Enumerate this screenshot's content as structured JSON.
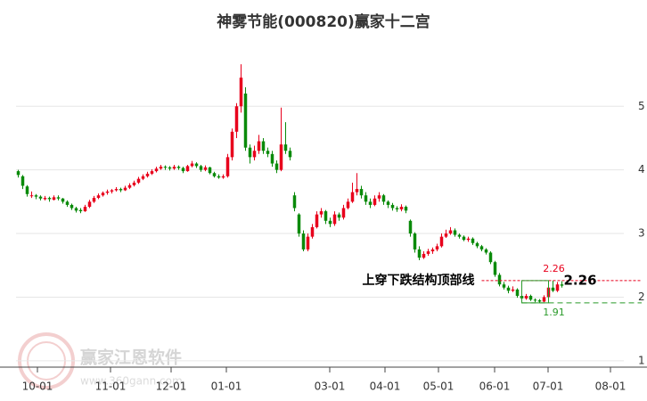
{
  "chart_data": {
    "type": "candlestick",
    "title": "神雾节能(000820)赢家十二宫",
    "candle_order": [
      "open",
      "high",
      "low",
      "close"
    ],
    "up_color": "#e8001c",
    "down_color": "#0a8a0a",
    "xlim": [
      -0.5,
      135.9
    ],
    "xticks": [
      {
        "value": 4.3,
        "label": "10-01"
      },
      {
        "value": 20.7,
        "label": "11-01"
      },
      {
        "value": 34.3,
        "label": "12-01"
      },
      {
        "value": 46.7,
        "label": "01-01"
      },
      {
        "value": 69.9,
        "label": "03-01"
      },
      {
        "value": 82.3,
        "label": "04-01"
      },
      {
        "value": 94.3,
        "label": "05-01"
      },
      {
        "value": 106.9,
        "label": "06-01"
      },
      {
        "value": 118.9,
        "label": "07-01"
      },
      {
        "value": 132.9,
        "label": "08-01"
      }
    ],
    "ylim": [
      0.9,
      5.9
    ],
    "yticks": [
      1,
      2,
      3,
      4,
      5
    ],
    "grid": true,
    "candles": [
      [
        3.98,
        4.0,
        3.88,
        3.92
      ],
      [
        3.9,
        3.92,
        3.7,
        3.75
      ],
      [
        3.74,
        3.76,
        3.58,
        3.62
      ],
      [
        3.6,
        3.66,
        3.56,
        3.6
      ],
      [
        3.6,
        3.62,
        3.54,
        3.58
      ],
      [
        3.58,
        3.6,
        3.52,
        3.55
      ],
      [
        3.54,
        3.59,
        3.52,
        3.56
      ],
      [
        3.56,
        3.58,
        3.5,
        3.54
      ],
      [
        3.53,
        3.6,
        3.52,
        3.57
      ],
      [
        3.57,
        3.6,
        3.52,
        3.55
      ],
      [
        3.55,
        3.56,
        3.47,
        3.5
      ],
      [
        3.5,
        3.52,
        3.42,
        3.45
      ],
      [
        3.45,
        3.47,
        3.37,
        3.4
      ],
      [
        3.4,
        3.42,
        3.33,
        3.36
      ],
      [
        3.37,
        3.4,
        3.32,
        3.35
      ],
      [
        3.35,
        3.45,
        3.34,
        3.42
      ],
      [
        3.42,
        3.53,
        3.4,
        3.5
      ],
      [
        3.5,
        3.59,
        3.48,
        3.56
      ],
      [
        3.56,
        3.63,
        3.54,
        3.6
      ],
      [
        3.6,
        3.66,
        3.58,
        3.64
      ],
      [
        3.64,
        3.69,
        3.61,
        3.66
      ],
      [
        3.66,
        3.7,
        3.63,
        3.68
      ],
      [
        3.68,
        3.73,
        3.66,
        3.7
      ],
      [
        3.7,
        3.72,
        3.65,
        3.68
      ],
      [
        3.68,
        3.75,
        3.67,
        3.72
      ],
      [
        3.72,
        3.79,
        3.7,
        3.76
      ],
      [
        3.76,
        3.83,
        3.74,
        3.8
      ],
      [
        3.8,
        3.89,
        3.78,
        3.86
      ],
      [
        3.86,
        3.93,
        3.84,
        3.9
      ],
      [
        3.9,
        3.97,
        3.88,
        3.94
      ],
      [
        3.94,
        4.01,
        3.92,
        3.98
      ],
      [
        3.98,
        4.05,
        3.96,
        4.02
      ],
      [
        4.02,
        4.08,
        4.0,
        4.05
      ],
      [
        4.05,
        4.07,
        4.0,
        4.04
      ],
      [
        4.04,
        4.06,
        3.99,
        4.02
      ],
      [
        4.02,
        4.08,
        4.0,
        4.05
      ],
      [
        4.05,
        4.07,
        4.0,
        4.03
      ],
      [
        4.03,
        4.05,
        3.95,
        3.98
      ],
      [
        3.98,
        4.08,
        3.97,
        4.06
      ],
      [
        4.06,
        4.14,
        4.04,
        4.1
      ],
      [
        4.1,
        4.12,
        4.03,
        4.06
      ],
      [
        4.06,
        4.08,
        3.97,
        4.0
      ],
      [
        4.0,
        4.07,
        3.98,
        4.04
      ],
      [
        4.04,
        4.05,
        3.93,
        3.95
      ],
      [
        3.95,
        3.97,
        3.88,
        3.9
      ],
      [
        3.9,
        3.93,
        3.86,
        3.88
      ],
      [
        3.88,
        3.93,
        3.86,
        3.9
      ],
      [
        3.9,
        4.25,
        3.88,
        4.2
      ],
      [
        4.2,
        4.65,
        4.15,
        4.6
      ],
      [
        4.6,
        5.05,
        4.5,
        5.0
      ],
      [
        5.0,
        5.66,
        4.9,
        5.45
      ],
      [
        5.2,
        5.3,
        4.3,
        4.35
      ],
      [
        4.35,
        4.4,
        4.1,
        4.2
      ],
      [
        4.2,
        4.38,
        4.15,
        4.3
      ],
      [
        4.3,
        4.55,
        4.25,
        4.45
      ],
      [
        4.45,
        4.5,
        4.25,
        4.3
      ],
      [
        4.3,
        4.35,
        4.2,
        4.25
      ],
      [
        4.25,
        4.3,
        4.05,
        4.1
      ],
      [
        4.1,
        4.15,
        3.95,
        4.0
      ],
      [
        4.0,
        4.98,
        3.98,
        4.4
      ],
      [
        4.4,
        4.75,
        4.25,
        4.3
      ],
      [
        4.3,
        4.35,
        4.15,
        4.2
      ],
      [
        3.6,
        3.65,
        3.35,
        3.4
      ],
      [
        3.3,
        3.32,
        2.95,
        3.0
      ],
      [
        3.0,
        3.05,
        2.72,
        2.75
      ],
      [
        2.75,
        3.0,
        2.72,
        2.95
      ],
      [
        2.95,
        3.15,
        2.92,
        3.1
      ],
      [
        3.1,
        3.35,
        3.08,
        3.3
      ],
      [
        3.3,
        3.4,
        3.25,
        3.35
      ],
      [
        3.35,
        3.37,
        3.15,
        3.2
      ],
      [
        3.2,
        3.25,
        3.1,
        3.15
      ],
      [
        3.15,
        3.35,
        3.12,
        3.3
      ],
      [
        3.3,
        3.33,
        3.2,
        3.25
      ],
      [
        3.25,
        3.45,
        3.22,
        3.4
      ],
      [
        3.4,
        3.55,
        3.38,
        3.5
      ],
      [
        3.5,
        3.8,
        3.48,
        3.65
      ],
      [
        3.65,
        3.95,
        3.6,
        3.7
      ],
      [
        3.7,
        3.75,
        3.55,
        3.6
      ],
      [
        3.6,
        3.65,
        3.45,
        3.5
      ],
      [
        3.5,
        3.55,
        3.4,
        3.45
      ],
      [
        3.45,
        3.6,
        3.43,
        3.55
      ],
      [
        3.55,
        3.65,
        3.5,
        3.6
      ],
      [
        3.6,
        3.62,
        3.45,
        3.5
      ],
      [
        3.5,
        3.52,
        3.4,
        3.45
      ],
      [
        3.45,
        3.48,
        3.36,
        3.4
      ],
      [
        3.4,
        3.43,
        3.34,
        3.38
      ],
      [
        3.38,
        3.46,
        3.35,
        3.42
      ],
      [
        3.42,
        3.44,
        3.32,
        3.36
      ],
      [
        3.2,
        3.22,
        2.95,
        3.0
      ],
      [
        3.0,
        3.02,
        2.7,
        2.75
      ],
      [
        2.75,
        2.8,
        2.58,
        2.62
      ],
      [
        2.62,
        2.72,
        2.6,
        2.68
      ],
      [
        2.68,
        2.76,
        2.65,
        2.72
      ],
      [
        2.72,
        2.78,
        2.68,
        2.75
      ],
      [
        2.75,
        2.84,
        2.72,
        2.8
      ],
      [
        2.8,
        3.0,
        2.78,
        2.95
      ],
      [
        2.95,
        3.06,
        2.93,
        3.0
      ],
      [
        3.0,
        3.1,
        2.98,
        3.05
      ],
      [
        3.05,
        3.08,
        2.95,
        2.98
      ],
      [
        2.98,
        3.0,
        2.92,
        2.95
      ],
      [
        2.95,
        2.97,
        2.88,
        2.9
      ],
      [
        2.9,
        2.95,
        2.87,
        2.92
      ],
      [
        2.92,
        2.94,
        2.82,
        2.85
      ],
      [
        2.85,
        2.87,
        2.77,
        2.8
      ],
      [
        2.8,
        2.82,
        2.72,
        2.75
      ],
      [
        2.75,
        2.77,
        2.67,
        2.7
      ],
      [
        2.7,
        2.72,
        2.52,
        2.55
      ],
      [
        2.55,
        2.57,
        2.32,
        2.35
      ],
      [
        2.35,
        2.38,
        2.17,
        2.2
      ],
      [
        2.2,
        2.24,
        2.12,
        2.15
      ],
      [
        2.15,
        2.18,
        2.06,
        2.1
      ],
      [
        2.1,
        2.17,
        2.08,
        2.12
      ],
      [
        2.12,
        2.14,
        1.99,
        2.02
      ],
      [
        2.02,
        2.04,
        1.95,
        1.98
      ],
      [
        1.98,
        2.05,
        1.96,
        2.02
      ],
      [
        2.02,
        2.04,
        1.94,
        1.96
      ],
      [
        1.96,
        1.98,
        1.92,
        1.95
      ],
      [
        1.95,
        1.97,
        1.91,
        1.93
      ],
      [
        1.93,
        2.03,
        1.92,
        2.0
      ],
      [
        2.0,
        2.2,
        1.98,
        2.15
      ],
      [
        2.15,
        2.26,
        2.08,
        2.1
      ],
      [
        2.1,
        2.24,
        2.08,
        2.2
      ],
      [
        2.2,
        2.25,
        2.15,
        2.18
      ]
    ],
    "levels": {
      "top": 2.26,
      "top_color": "#e8001c",
      "bottom": 1.91,
      "bottom_color": "#2a9a2a",
      "line_start": 104,
      "box_start": 113,
      "box_end": 119
    },
    "annotation": "上穿下跌结构顶部线",
    "watermark": {
      "name": "赢家江恩软件",
      "url": "www.360gann.com"
    }
  }
}
